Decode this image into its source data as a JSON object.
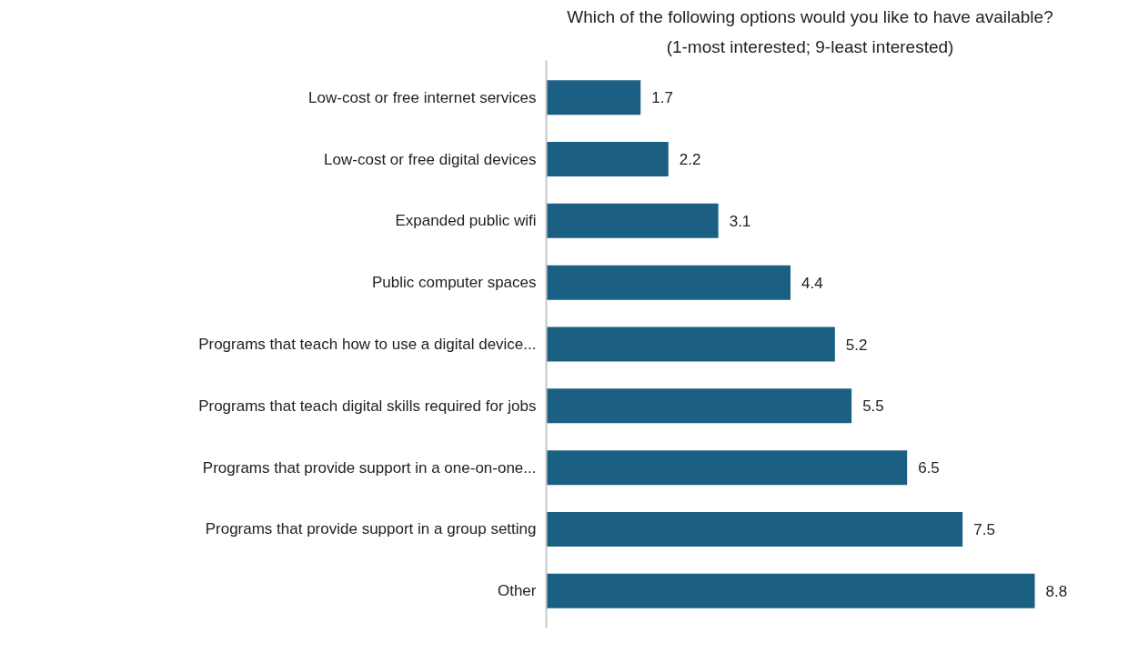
{
  "chart_data": {
    "type": "bar",
    "orientation": "horizontal",
    "title": "Which of the following options would you like to have available?",
    "subtitle": "(1-most interested; 9-least interested)",
    "categories": [
      "Low-cost or free internet services",
      "Low-cost or free digital devices",
      "Expanded public wifi",
      "Public computer spaces",
      "Programs that teach how to use a digital device...",
      "Programs that teach digital skills required for jobs",
      "Programs that provide support in a one-on-one...",
      "Programs that provide support in a group setting",
      "Other"
    ],
    "values": [
      1.7,
      2.2,
      3.1,
      4.4,
      5.2,
      5.5,
      6.5,
      7.5,
      8.8
    ],
    "color": "#1b6083",
    "data_labels": true
  }
}
